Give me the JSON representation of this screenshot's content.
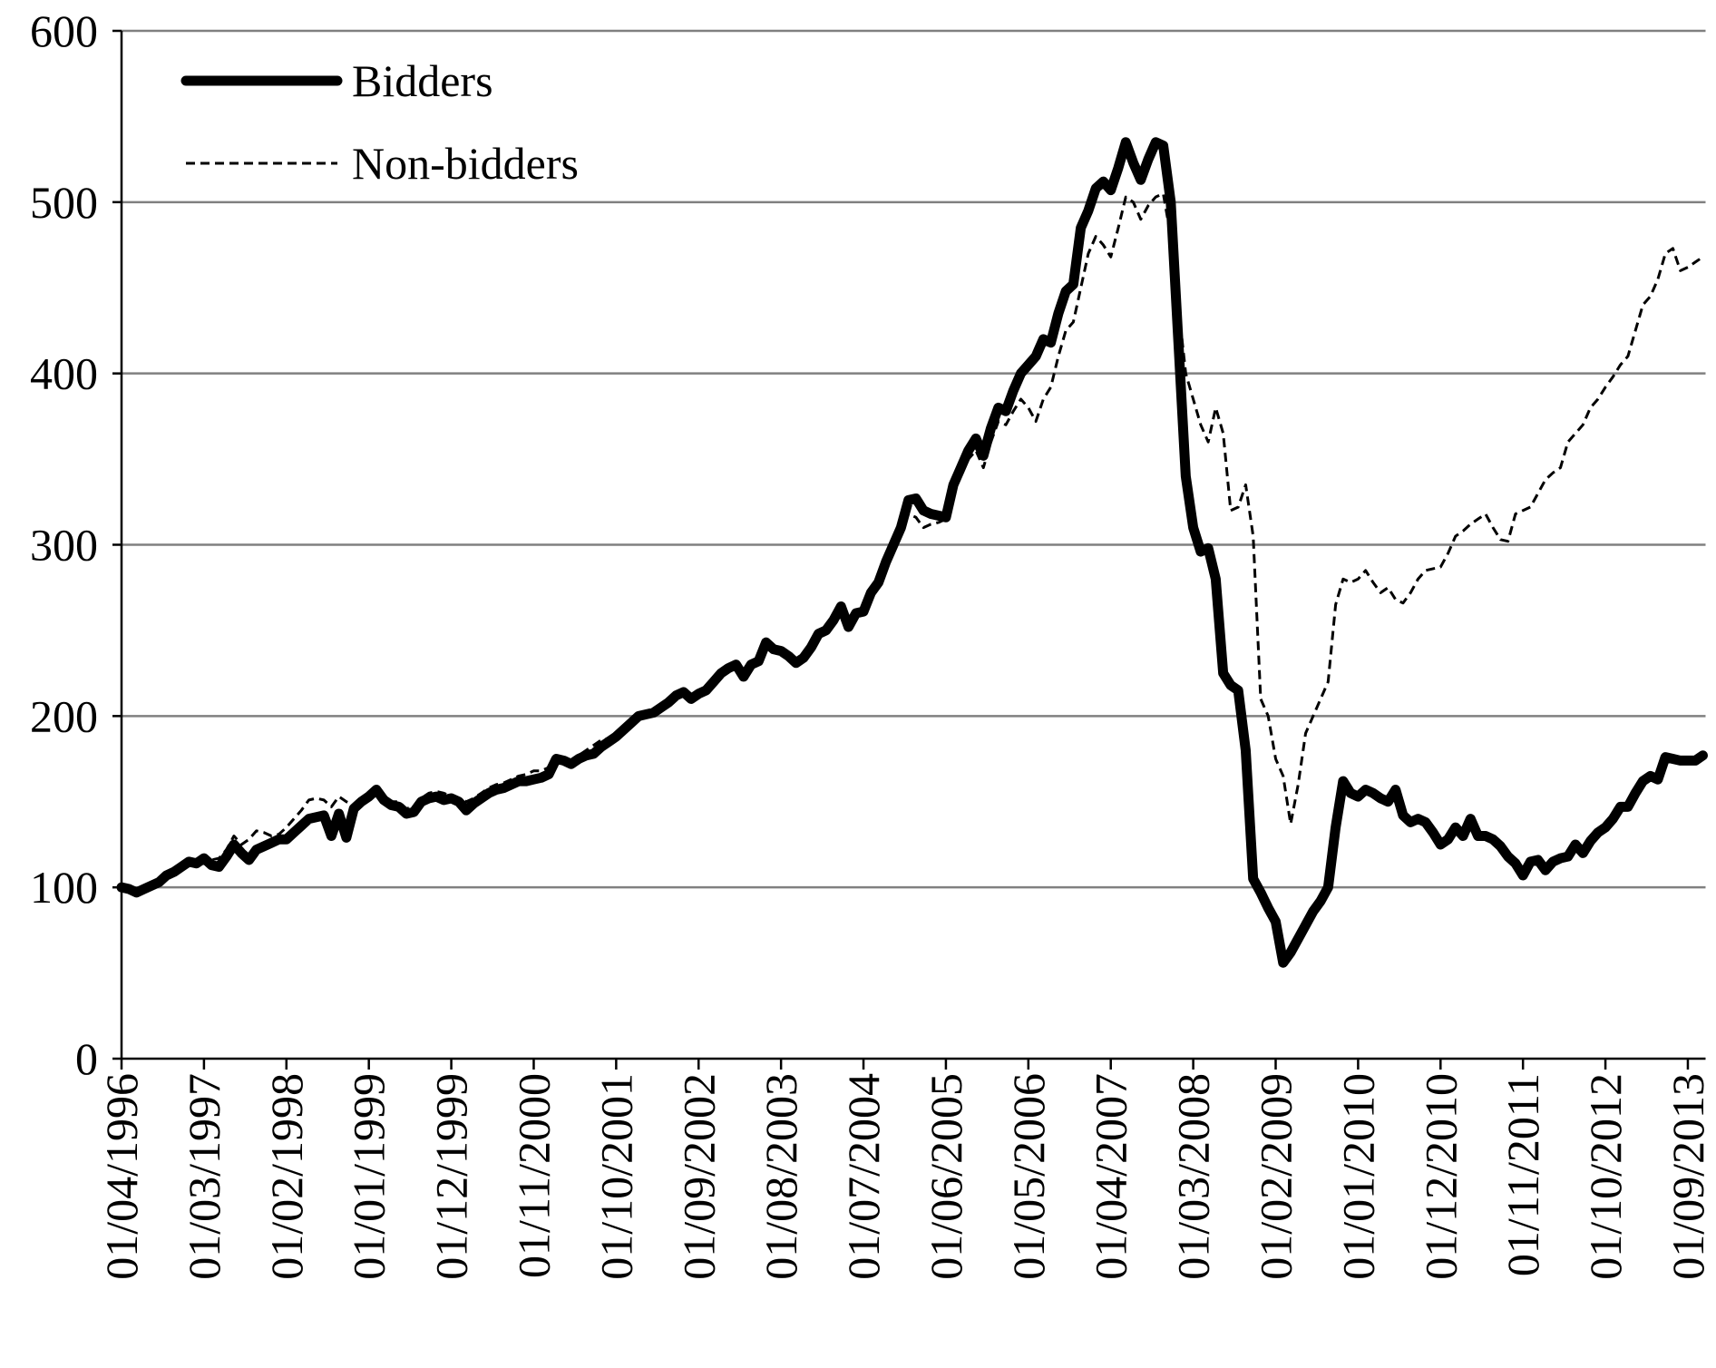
{
  "chart_data": {
    "type": "line",
    "categories": [
      "01/04/1996",
      null,
      null,
      null,
      null,
      null,
      null,
      null,
      null,
      null,
      null,
      "01/03/1997",
      null,
      null,
      null,
      null,
      null,
      null,
      null,
      null,
      null,
      null,
      "01/02/1998",
      null,
      null,
      null,
      null,
      null,
      null,
      null,
      null,
      null,
      null,
      "01/01/1999",
      null,
      null,
      null,
      null,
      null,
      null,
      null,
      null,
      null,
      null,
      "01/12/1999",
      null,
      null,
      null,
      null,
      null,
      null,
      null,
      null,
      null,
      null,
      "01/11/2000",
      null,
      null,
      null,
      null,
      null,
      null,
      null,
      null,
      null,
      null,
      "01/10/2001",
      null,
      null,
      null,
      null,
      null,
      null,
      null,
      null,
      null,
      null,
      "01/09/2002",
      null,
      null,
      null,
      null,
      null,
      null,
      null,
      null,
      null,
      null,
      "01/08/2003",
      null,
      null,
      null,
      null,
      null,
      null,
      null,
      null,
      null,
      null,
      "01/07/2004",
      null,
      null,
      null,
      null,
      null,
      null,
      null,
      null,
      null,
      null,
      "01/06/2005",
      null,
      null,
      null,
      null,
      null,
      null,
      null,
      null,
      null,
      null,
      "01/05/2006",
      null,
      null,
      null,
      null,
      null,
      null,
      null,
      null,
      null,
      null,
      "01/04/2007",
      null,
      null,
      null,
      null,
      null,
      null,
      null,
      null,
      null,
      null,
      "01/03/2008",
      null,
      null,
      null,
      null,
      null,
      null,
      null,
      null,
      null,
      null,
      "01/02/2009",
      null,
      null,
      null,
      null,
      null,
      null,
      null,
      null,
      null,
      null,
      "01/01/2010",
      null,
      null,
      null,
      null,
      null,
      null,
      null,
      null,
      null,
      null,
      "01/12/2010",
      null,
      null,
      null,
      null,
      null,
      null,
      null,
      null,
      null,
      null,
      "01/11/2011",
      null,
      null,
      null,
      null,
      null,
      null,
      null,
      null,
      null,
      null,
      "01/10/2012",
      null,
      null,
      null,
      null,
      null,
      null,
      null,
      null,
      null,
      null,
      "01/09/2013",
      null,
      null
    ],
    "series": [
      {
        "name": "Bidders",
        "color": "#000000",
        "line_style": "solid",
        "values": [
          100,
          99,
          97,
          99,
          101,
          103,
          107,
          109,
          112,
          115,
          114,
          117,
          113,
          112,
          118,
          125,
          120,
          116,
          122,
          124,
          126,
          128,
          128,
          132,
          136,
          140,
          141,
          142,
          130,
          143,
          129,
          146,
          150,
          153,
          157,
          151,
          148,
          147,
          143,
          144,
          150,
          152,
          153,
          151,
          152,
          150,
          145,
          149,
          152,
          155,
          157,
          158,
          160,
          162,
          162,
          163,
          164,
          166,
          175,
          174,
          172,
          175,
          177,
          178,
          182,
          185,
          188,
          192,
          196,
          200,
          201,
          202,
          205,
          208,
          212,
          214,
          210,
          213,
          215,
          220,
          225,
          228,
          230,
          223,
          230,
          232,
          243,
          239,
          238,
          235,
          231,
          234,
          240,
          248,
          250,
          256,
          264,
          252,
          260,
          261,
          272,
          278,
          290,
          300,
          310,
          326,
          327,
          320,
          318,
          317,
          316,
          335,
          345,
          355,
          362,
          352,
          368,
          380,
          378,
          390,
          400,
          405,
          410,
          420,
          418,
          435,
          448,
          452,
          485,
          495,
          508,
          512,
          507,
          520,
          535,
          523,
          513,
          525,
          535,
          533,
          500,
          420,
          340,
          310,
          296,
          298,
          280,
          225,
          218,
          215,
          180,
          105,
          97,
          88,
          80,
          56,
          62,
          70,
          78,
          86,
          92,
          100,
          135,
          162,
          155,
          153,
          157,
          155,
          152,
          150,
          157,
          142,
          138,
          140,
          138,
          132,
          125,
          128,
          135,
          130,
          140,
          130,
          130,
          128,
          124,
          118,
          114,
          107,
          115,
          116,
          110,
          115,
          117,
          118,
          125,
          120,
          127,
          132,
          135,
          140,
          147,
          147,
          155,
          162,
          165,
          163,
          176,
          175,
          174,
          174,
          174,
          177
        ]
      },
      {
        "name": "Non-bidders",
        "color": "#000000",
        "line_style": "dashed",
        "values": [
          100,
          99,
          98,
          100,
          102,
          104,
          107,
          110,
          113,
          115,
          115,
          118,
          116,
          117,
          122,
          130,
          125,
          128,
          133,
          132,
          130,
          131,
          135,
          140,
          145,
          151,
          152,
          151,
          147,
          153,
          150,
          148,
          152,
          155,
          156,
          152,
          150,
          150,
          146,
          147,
          152,
          155,
          156,
          155,
          153,
          152,
          150,
          152,
          155,
          158,
          160,
          161,
          163,
          165,
          166,
          168,
          168,
          170,
          174,
          176,
          174,
          177,
          180,
          183,
          186,
          187,
          190,
          194,
          198,
          201,
          202,
          203,
          206,
          210,
          213,
          215,
          212,
          214,
          216,
          221,
          226,
          229,
          231,
          225,
          231,
          233,
          241,
          238,
          237,
          234,
          232,
          235,
          241,
          248,
          251,
          256,
          262,
          253,
          259,
          260,
          270,
          276,
          288,
          297,
          306,
          318,
          316,
          310,
          312,
          313,
          315,
          330,
          340,
          350,
          355,
          345,
          360,
          372,
          370,
          378,
          385,
          380,
          372,
          385,
          392,
          410,
          425,
          430,
          450,
          470,
          480,
          475,
          468,
          485,
          503,
          500,
          490,
          498,
          503,
          505,
          480,
          440,
          400,
          385,
          370,
          360,
          380,
          365,
          320,
          322,
          335,
          305,
          210,
          200,
          175,
          165,
          137,
          160,
          190,
          200,
          210,
          220,
          265,
          280,
          278,
          280,
          285,
          278,
          272,
          275,
          268,
          266,
          272,
          280,
          285,
          286,
          287,
          295,
          305,
          308,
          312,
          315,
          318,
          310,
          303,
          302,
          318,
          320,
          322,
          330,
          338,
          342,
          345,
          360,
          365,
          370,
          380,
          385,
          392,
          398,
          405,
          410,
          425,
          440,
          445,
          455,
          470,
          473,
          460,
          462,
          465,
          468
        ]
      }
    ],
    "ylim": [
      0,
      600
    ],
    "yticks": [
      0,
      100,
      200,
      300,
      400,
      500,
      600
    ],
    "grid": true,
    "grid_color": "#808080",
    "legend": "top-left"
  }
}
